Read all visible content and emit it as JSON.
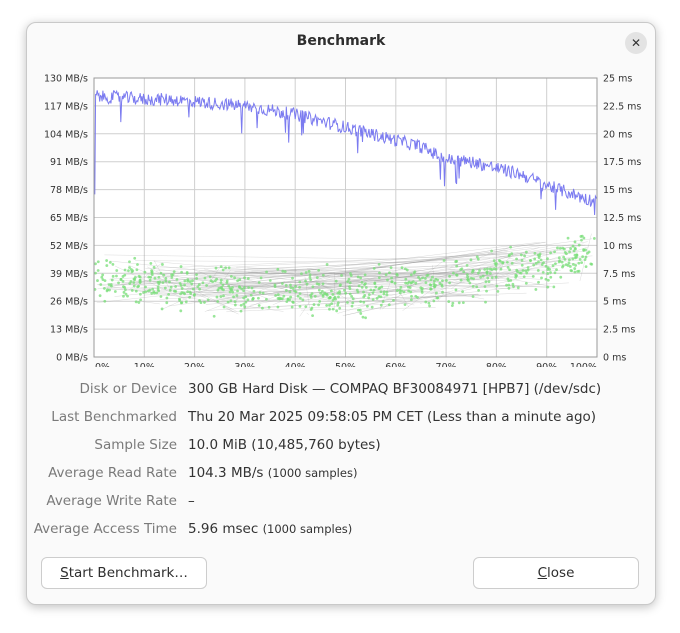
{
  "window": {
    "title": "Benchmark",
    "close_icon": "close-icon"
  },
  "chart_data": {
    "type": "line",
    "x_axis": {
      "label": "",
      "unit": "%",
      "range": [
        0,
        100
      ],
      "ticks": [
        "0%",
        "10%",
        "20%",
        "30%",
        "40%",
        "50%",
        "60%",
        "70%",
        "80%",
        "90%",
        "100%"
      ]
    },
    "y_axis_left": {
      "label": "",
      "unit": "MB/s",
      "range": [
        0,
        130
      ],
      "ticks": [
        "0 MB/s",
        "13 MB/s",
        "26 MB/s",
        "39 MB/s",
        "52 MB/s",
        "65 MB/s",
        "78 MB/s",
        "91 MB/s",
        "104 MB/s",
        "117 MB/s",
        "130 MB/s"
      ]
    },
    "y_axis_right": {
      "label": "",
      "unit": "ms",
      "range": [
        0,
        25
      ],
      "ticks": [
        "0 ms",
        "2.5 ms",
        "5 ms",
        "7.5 ms",
        "10 ms",
        "12.5 ms",
        "15 ms",
        "17.5 ms",
        "20 ms",
        "22.5 ms",
        "25 ms"
      ]
    },
    "grid": true,
    "colors": {
      "read_rate": "#7b7bf0",
      "access_time": "#77dd77",
      "access_lines": "#8c8c8c"
    },
    "series": [
      {
        "axis": "left",
        "x": [
          0,
          2,
          5,
          10,
          15,
          20,
          25,
          30,
          35,
          40,
          45,
          50,
          55,
          60,
          65,
          70,
          75,
          80,
          85,
          90,
          95,
          100
        ],
        "values": [
          122,
          121,
          121,
          120,
          120,
          119,
          118,
          117,
          115,
          113,
          110,
          107,
          104,
          101,
          98,
          92,
          91,
          88,
          85,
          80,
          76,
          72
        ]
      },
      {
        "axis": "right",
        "x": [
          0,
          5,
          10,
          15,
          20,
          25,
          30,
          35,
          40,
          45,
          50,
          55,
          60,
          65,
          70,
          75,
          80,
          85,
          90,
          95,
          100
        ],
        "values": [
          7.0,
          6.9,
          6.6,
          6.3,
          6.1,
          5.9,
          5.8,
          5.8,
          5.8,
          5.8,
          5.9,
          6.0,
          6.2,
          6.4,
          6.7,
          7.0,
          7.4,
          7.8,
          8.3,
          8.8,
          9.3
        ],
        "spread": 2.2
      }
    ]
  },
  "info": {
    "device": {
      "label": "Disk or Device",
      "value": "300 GB Hard Disk — COMPAQ BF30084971 [HPB7] (/dev/sdc)"
    },
    "last_benchmarked": {
      "label": "Last Benchmarked",
      "value": "Thu 20 Mar 2025 09:58:05 PM CET (Less than a minute ago)"
    },
    "sample_size": {
      "label": "Sample Size",
      "value": "10.0 MiB (10,485,760 bytes)"
    },
    "avg_read": {
      "label": "Average Read Rate",
      "value": "104.3 MB/s",
      "note": "(1000 samples)"
    },
    "avg_write": {
      "label": "Average Write Rate",
      "value": "–"
    },
    "avg_access": {
      "label": "Average Access Time",
      "value": "5.96 msec",
      "note": "(1000 samples)"
    }
  },
  "buttons": {
    "start": {
      "mnemonic": "S",
      "rest": "tart Benchmark…"
    },
    "close": {
      "mnemonic": "C",
      "rest": "lose"
    }
  }
}
